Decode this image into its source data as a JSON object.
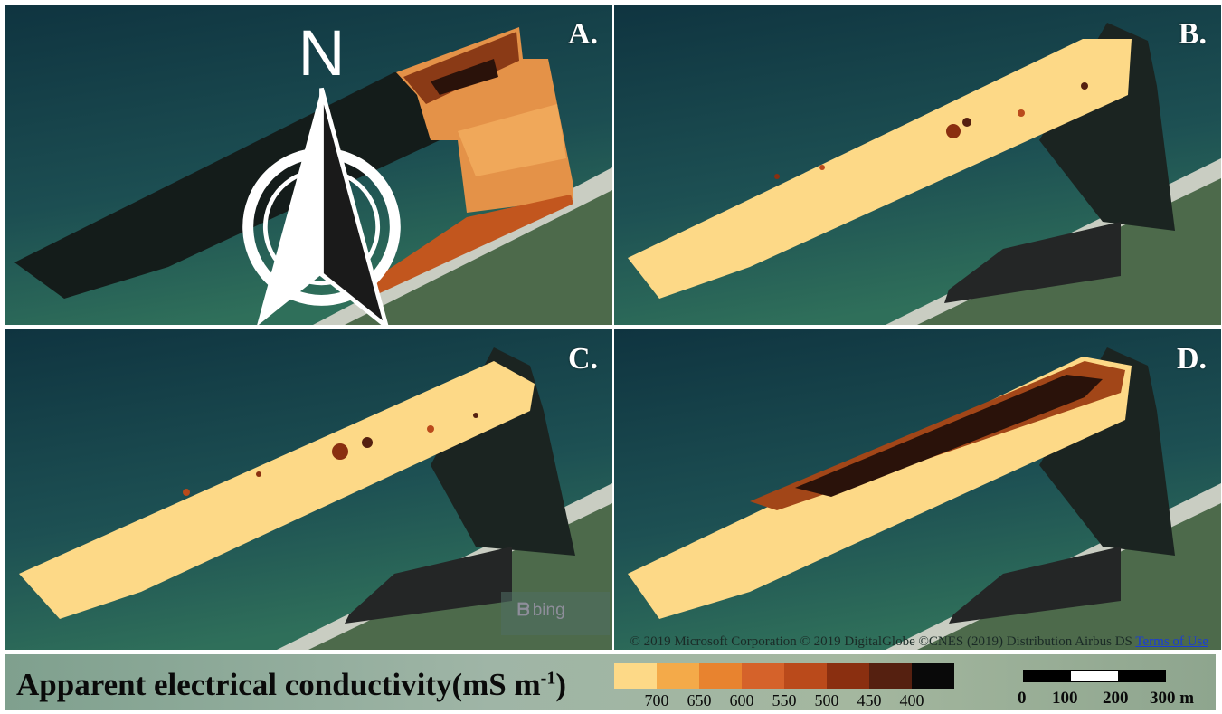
{
  "panels": [
    {
      "id": "A",
      "label": "A."
    },
    {
      "id": "B",
      "label": "B."
    },
    {
      "id": "C",
      "label": "C."
    },
    {
      "id": "D",
      "label": "D."
    }
  ],
  "north_arrow": {
    "letter": "N",
    "icon": "north-arrow-icon"
  },
  "basemap": {
    "logo_text": "bing",
    "copyright": "© 2019 Microsoft Corporation © 2019 DigitalGlobe ©CNES (2019) Distribution Airbus DS",
    "terms_link": "Terms of Use",
    "colors": {
      "sea": "#113840",
      "shallow": "#2d6b5a",
      "land": "#4a6a4c",
      "sand": "#c8ccc0"
    }
  },
  "legend": {
    "title": "Apparent electrical conductivity(mS m",
    "title_sup": "-1",
    "title_close": ")",
    "ramp_colors": [
      "#fdd987",
      "#f4aa49",
      "#e8832f",
      "#d5622a",
      "#ba4a1b",
      "#8a2f10",
      "#552010",
      "#090909"
    ],
    "ramp_labels": [
      "700",
      "650",
      "600",
      "550",
      "500",
      "450",
      "400"
    ]
  },
  "scale_bar": {
    "labels": [
      "0",
      "100",
      "200",
      "300 m"
    ],
    "segment_colors": [
      "#000000",
      "#ffffff",
      "#000000"
    ]
  }
}
